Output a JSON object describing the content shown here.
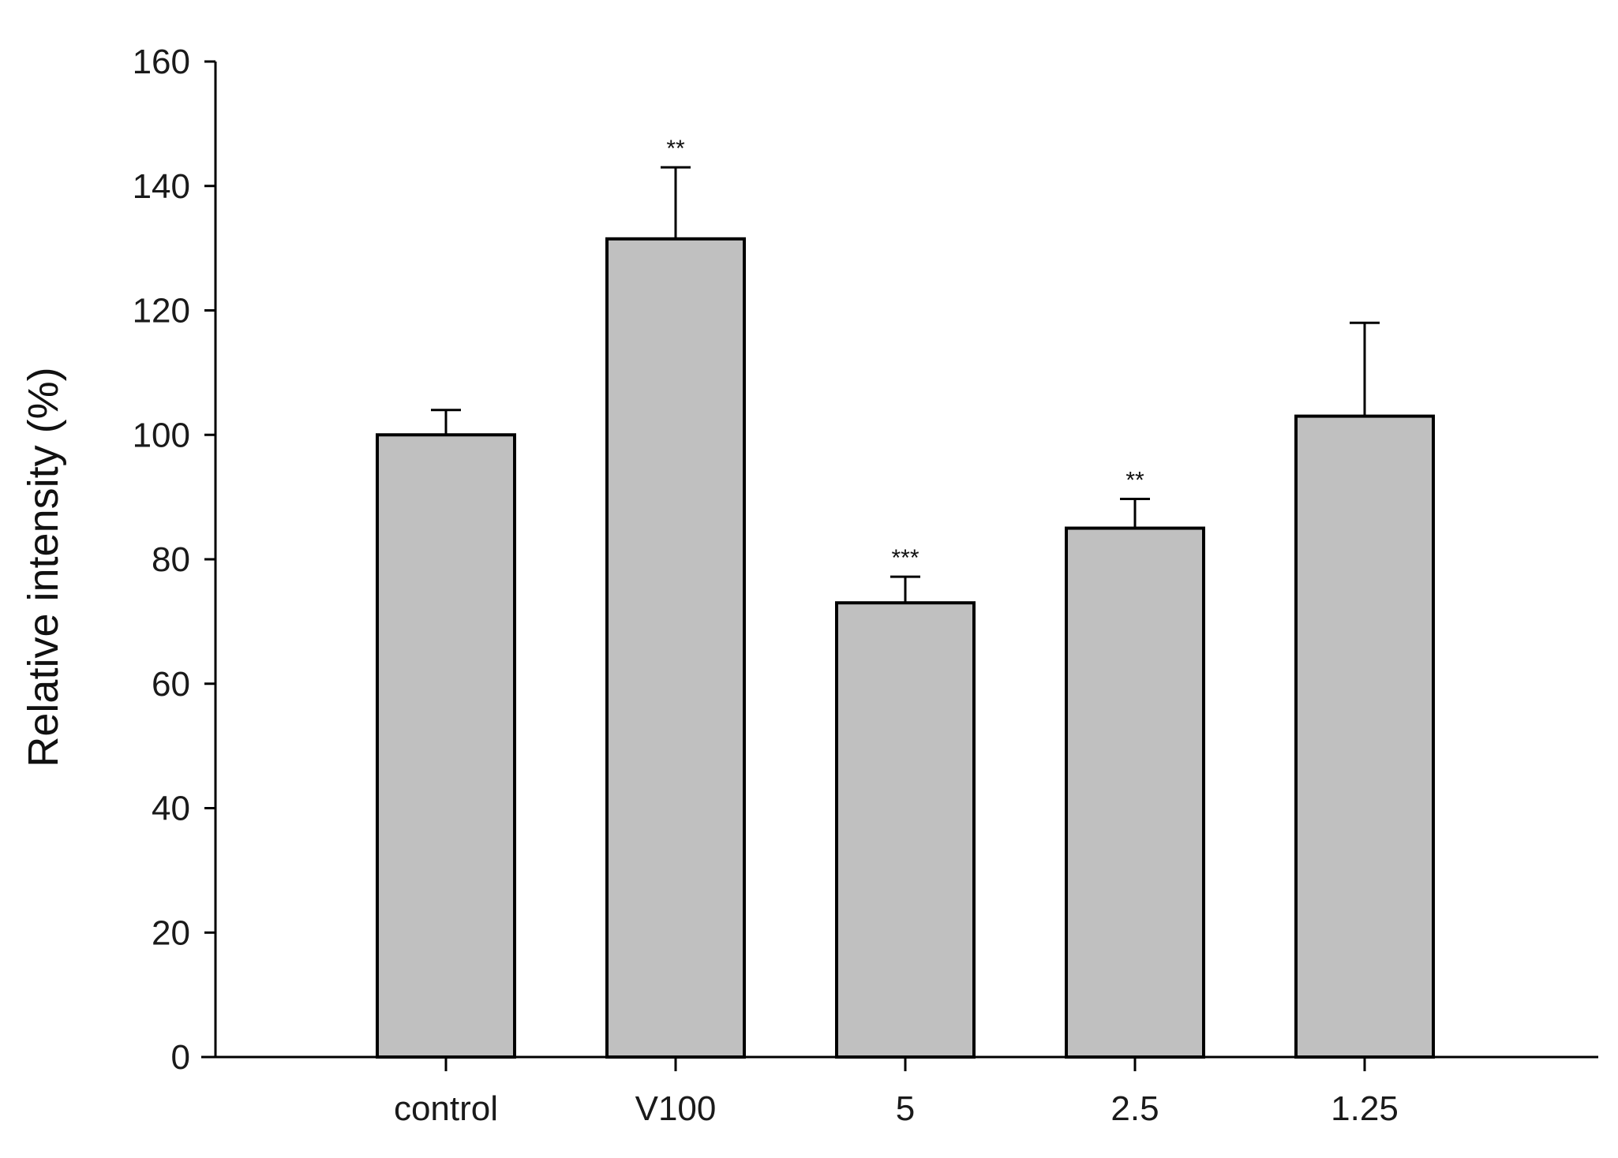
{
  "chart_data": {
    "type": "bar",
    "title": "",
    "xlabel": "",
    "ylabel": "Relative intensity (%)",
    "ylim": [
      0,
      160
    ],
    "yticks": [
      0,
      20,
      40,
      60,
      80,
      100,
      120,
      140,
      160
    ],
    "categories": [
      "control",
      "V100",
      "5",
      "2.5",
      "1.25"
    ],
    "values": [
      100,
      131.5,
      73,
      85,
      103
    ],
    "error_upper": [
      104,
      143,
      77.2,
      89.7,
      118
    ],
    "annotations": [
      "",
      "**",
      "***",
      "**",
      ""
    ],
    "grid": false,
    "legend": "none",
    "colors": {
      "bar_fill": "#c0c0c0",
      "bar_stroke": "#000000",
      "axis": "#000000"
    }
  }
}
